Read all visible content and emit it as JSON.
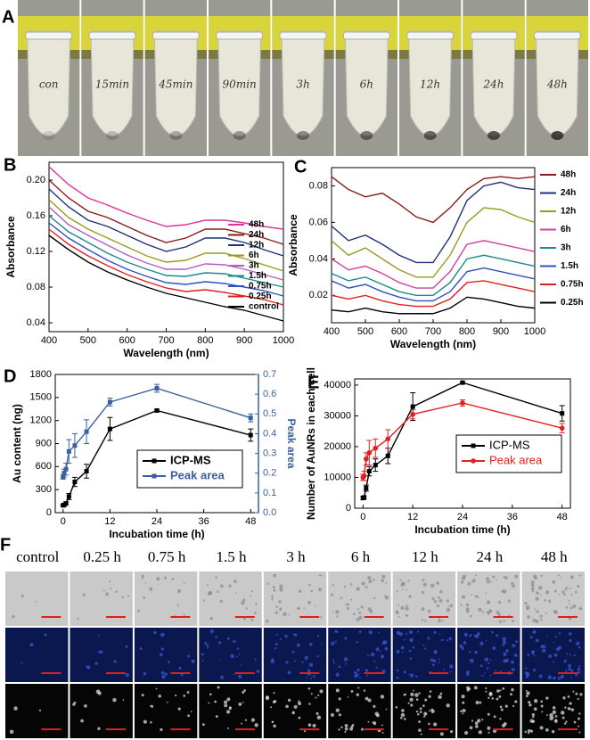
{
  "figure": {
    "panel_a": "A",
    "tube_labels": [
      "con",
      "15min",
      "45min",
      "90min",
      "3h",
      "6h",
      "12h",
      "24h",
      "48h"
    ],
    "panel_f": "F",
    "image_columns": [
      "control",
      "0.25 h",
      "0.75 h",
      "1.5 h",
      "3 h",
      "6 h",
      "12 h",
      "24 h",
      "48 h"
    ]
  },
  "chart_data": [
    {
      "type": "line",
      "panel": "B",
      "xlabel": "Wavelength (nm)",
      "ylabel": "Absorbance",
      "xlim": [
        400,
        1000
      ],
      "xticks": [
        400,
        500,
        600,
        700,
        800,
        900,
        1000
      ],
      "ylim": [
        0.03,
        0.22
      ],
      "yticks": [
        0.04,
        0.08,
        0.12,
        0.16,
        {
          "value": 0.2,
          "label": "0.20"
        }
      ],
      "legend": "center right",
      "x": [
        400,
        450,
        500,
        550,
        600,
        650,
        700,
        750,
        800,
        850,
        900,
        950,
        1000
      ],
      "series": [
        {
          "name": "48h",
          "color": "#e0309a",
          "values": [
            0.215,
            0.195,
            0.18,
            0.172,
            0.163,
            0.155,
            0.148,
            0.15,
            0.155,
            0.155,
            0.152,
            0.148,
            0.145
          ]
        },
        {
          "name": "24h",
          "color": "#8b1a1a",
          "values": [
            0.2,
            0.18,
            0.165,
            0.158,
            0.148,
            0.138,
            0.13,
            0.135,
            0.145,
            0.145,
            0.14,
            0.135,
            0.128
          ]
        },
        {
          "name": "12h",
          "color": "#1f2f7a",
          "values": [
            0.19,
            0.17,
            0.155,
            0.148,
            0.138,
            0.128,
            0.12,
            0.125,
            0.135,
            0.135,
            0.13,
            0.122,
            0.115
          ]
        },
        {
          "name": "6h",
          "color": "#9a9a20",
          "values": [
            0.178,
            0.158,
            0.145,
            0.135,
            0.125,
            0.115,
            0.108,
            0.11,
            0.118,
            0.118,
            0.112,
            0.105,
            0.098
          ]
        },
        {
          "name": "3h",
          "color": "#b060c0",
          "values": [
            0.17,
            0.15,
            0.138,
            0.127,
            0.116,
            0.107,
            0.1,
            0.1,
            0.106,
            0.105,
            0.1,
            0.094,
            0.088
          ]
        },
        {
          "name": "1.5h",
          "color": "#1a8a8a",
          "values": [
            0.16,
            0.142,
            0.13,
            0.118,
            0.108,
            0.1,
            0.093,
            0.092,
            0.096,
            0.095,
            0.09,
            0.085,
            0.08
          ]
        },
        {
          "name": "0.75h",
          "color": "#3050c0",
          "values": [
            0.152,
            0.135,
            0.122,
            0.11,
            0.1,
            0.092,
            0.085,
            0.083,
            0.086,
            0.084,
            0.08,
            0.076,
            0.07
          ]
        },
        {
          "name": "0.25h",
          "color": "#e02020",
          "values": [
            0.145,
            0.128,
            0.115,
            0.104,
            0.094,
            0.086,
            0.079,
            0.075,
            0.077,
            0.074,
            0.07,
            0.066,
            0.06
          ]
        },
        {
          "name": "control",
          "color": "#000000",
          "values": [
            0.138,
            0.122,
            0.108,
            0.097,
            0.088,
            0.08,
            0.073,
            0.068,
            0.063,
            0.058,
            0.054,
            0.048,
            0.042
          ]
        }
      ]
    },
    {
      "type": "line",
      "panel": "C",
      "xlabel": "Wavelength (nm)",
      "ylabel": "Absorbance",
      "xlim": [
        400,
        1000
      ],
      "xticks": [
        400,
        500,
        600,
        700,
        800,
        900,
        1000
      ],
      "ylim": [
        0.005,
        0.09
      ],
      "yticks": [
        0.02,
        0.04,
        0.06,
        0.08
      ],
      "legend": "outside right",
      "x": [
        400,
        450,
        500,
        550,
        600,
        650,
        700,
        750,
        800,
        850,
        900,
        950,
        1000
      ],
      "series": [
        {
          "name": "48h",
          "color": "#8b1a1a",
          "values": [
            0.085,
            0.078,
            0.074,
            0.076,
            0.07,
            0.063,
            0.06,
            0.068,
            0.078,
            0.084,
            0.085,
            0.084,
            0.085
          ]
        },
        {
          "name": "24h",
          "color": "#1f2f7a",
          "values": [
            0.058,
            0.05,
            0.053,
            0.048,
            0.042,
            0.038,
            0.038,
            0.052,
            0.072,
            0.08,
            0.082,
            0.079,
            0.078
          ]
        },
        {
          "name": "12h",
          "color": "#9a9a20",
          "values": [
            0.05,
            0.042,
            0.046,
            0.04,
            0.034,
            0.03,
            0.03,
            0.042,
            0.06,
            0.068,
            0.067,
            0.063,
            0.06
          ]
        },
        {
          "name": "6h",
          "color": "#d040a0",
          "values": [
            0.04,
            0.034,
            0.036,
            0.032,
            0.027,
            0.024,
            0.024,
            0.033,
            0.048,
            0.05,
            0.048,
            0.046,
            0.044
          ]
        },
        {
          "name": "3h",
          "color": "#1a8a8a",
          "values": [
            0.032,
            0.028,
            0.03,
            0.026,
            0.022,
            0.02,
            0.02,
            0.027,
            0.04,
            0.042,
            0.04,
            0.038,
            0.036
          ]
        },
        {
          "name": "1.5h",
          "color": "#3050c0",
          "values": [
            0.028,
            0.024,
            0.026,
            0.022,
            0.019,
            0.017,
            0.017,
            0.022,
            0.033,
            0.035,
            0.033,
            0.031,
            0.029
          ]
        },
        {
          "name": "0.75h",
          "color": "#e02020",
          "values": [
            0.02,
            0.018,
            0.02,
            0.017,
            0.015,
            0.014,
            0.014,
            0.018,
            0.027,
            0.028,
            0.026,
            0.024,
            0.022
          ]
        },
        {
          "name": "0.25h",
          "color": "#000000",
          "values": [
            0.012,
            0.011,
            0.013,
            0.011,
            0.01,
            0.01,
            0.01,
            0.013,
            0.019,
            0.018,
            0.016,
            0.014,
            0.013
          ]
        }
      ]
    },
    {
      "type": "line",
      "panel": "D",
      "xlabel": "Incubation time (h)",
      "ylabel": "Au content (ng)",
      "y2label": "Peak area",
      "y2color": "#3a5fa0",
      "xlim": [
        -2,
        50
      ],
      "xticks": [
        0,
        12,
        24,
        36,
        48
      ],
      "ylim": [
        0,
        1800
      ],
      "yticks": [
        0,
        300,
        600,
        900,
        1200,
        1500,
        1800
      ],
      "y2lim": [
        0,
        0.7
      ],
      "y2ticks": [
        {
          "value": 0,
          "label": "0.0"
        },
        0.1,
        0.2,
        0.3,
        0.4,
        0.5,
        0.6,
        0.7
      ],
      "legend": "lower right",
      "x": [
        0,
        0.25,
        0.75,
        1.5,
        3,
        6,
        12,
        24,
        48
      ],
      "series": [
        {
          "name": "ICP-MS",
          "color": "#000000",
          "marker": "square",
          "values": [
            95,
            100,
            120,
            210,
            400,
            540,
            1090,
            1330,
            1010
          ],
          "errors": [
            10,
            10,
            20,
            40,
            60,
            90,
            150,
            15,
            80
          ]
        },
        {
          "name": "Peak area",
          "color": "#3a5fa0",
          "marker": "square",
          "axis": "y2",
          "values": [
            0.18,
            0.2,
            0.22,
            0.31,
            0.34,
            0.41,
            0.56,
            0.63,
            0.48
          ],
          "errors": [
            0.01,
            0.02,
            0.03,
            0.06,
            0.06,
            0.06,
            0.02,
            0.02,
            0.02
          ]
        }
      ]
    },
    {
      "type": "line",
      "panel": "E",
      "xlabel": "Incubation time (h)",
      "ylabel": "Number of AuNRs in each cell",
      "xlim": [
        -2,
        50
      ],
      "xticks": [
        0,
        12,
        24,
        36,
        48
      ],
      "ylim": [
        0,
        42000
      ],
      "yticks": [
        0,
        10000,
        20000,
        30000,
        40000
      ],
      "legend": "lower right",
      "x": [
        0,
        0.25,
        0.75,
        1.5,
        3,
        6,
        12,
        24,
        48
      ],
      "series": [
        {
          "name": "ICP-MS",
          "color": "#000000",
          "marker": "square",
          "values": [
            3300,
            3500,
            6500,
            12000,
            14000,
            17000,
            33000,
            40800,
            30800
          ],
          "errors": [
            500,
            500,
            1000,
            1500,
            2000,
            2500,
            4500,
            300,
            2500
          ]
        },
        {
          "name": "Peak area",
          "color": "#e02020",
          "marker": "circle",
          "values": [
            10000,
            10500,
            16000,
            18000,
            19500,
            22500,
            30500,
            34200,
            26000
          ],
          "errors": [
            1000,
            1500,
            2000,
            4000,
            3000,
            3000,
            1500,
            1000,
            1500
          ]
        }
      ]
    }
  ]
}
